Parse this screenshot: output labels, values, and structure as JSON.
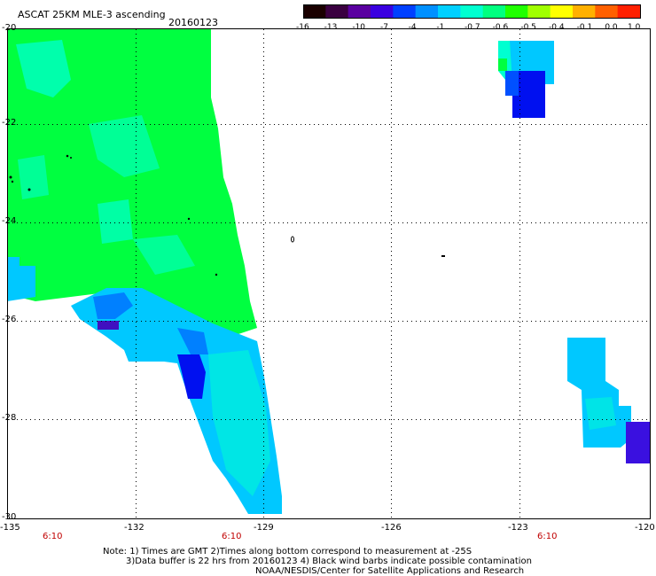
{
  "header": {
    "title": "ASCAT 25KM MLE-3 ascending",
    "date": "20160123"
  },
  "colorbar": {
    "labels": [
      "-16",
      "-13",
      "-10",
      "-7",
      "-4",
      "-1",
      "-0.7",
      "-0.6",
      "-0.5",
      "-0.4",
      "-0.1",
      "0.0",
      "1.0"
    ],
    "colors": [
      "#1a0000",
      "#3a0040",
      "#5a00a0",
      "#3a00e0",
      "#0040ff",
      "#0090ff",
      "#00d0ff",
      "#00ffd0",
      "#00ff80",
      "#20ff00",
      "#a0ff00",
      "#ffff00",
      "#ffb000",
      "#ff6000",
      "#ff2000"
    ]
  },
  "axes": {
    "lat_labels": [
      "-20",
      "-22",
      "-24",
      "-26",
      "-28",
      "-30"
    ],
    "lon_labels": [
      "-135",
      "-132",
      "-129",
      "-126",
      "-123",
      "-120"
    ],
    "time_labels": [
      "6:10",
      "6:10",
      "6:10"
    ]
  },
  "notes": {
    "line1": "Note: 1) Times are GMT 2)Times along bottom correspond to measurement at -25S",
    "line2": "3)Data buffer is 22 hrs from 20160123 4) Black wind barbs indicate possible contamination",
    "line3": "NOAA/NESDIS/Center for Satellite Applications and Research"
  },
  "data_colors": {
    "green": "#00ff40",
    "cyan": "#00ffd0",
    "light_blue": "#00c8ff",
    "medium_blue": "#0080ff",
    "dark_blue": "#0010f0",
    "purple": "#4010c0"
  }
}
